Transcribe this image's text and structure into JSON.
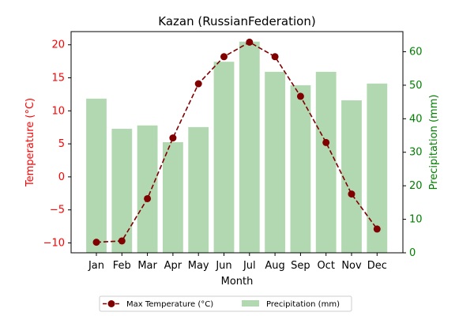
{
  "chart_data": {
    "type": "bar+line",
    "title": "Kazan (RussianFederation)",
    "xlabel": "Month",
    "categories": [
      "Jan",
      "Feb",
      "Mar",
      "Apr",
      "May",
      "Jun",
      "Jul",
      "Aug",
      "Sep",
      "Oct",
      "Nov",
      "Dec"
    ],
    "left_axis": {
      "label": "Temperature (°C)",
      "ylim": [
        -11.5,
        22
      ],
      "ticks": [
        -10,
        -5,
        0,
        5,
        10,
        15,
        20
      ],
      "tick_labels": [
        "−10",
        "−5",
        "0",
        "5",
        "10",
        "15",
        "20"
      ],
      "color": "#ff0000"
    },
    "right_axis": {
      "label": "Precipitation (mm)",
      "ylim": [
        0,
        66
      ],
      "ticks": [
        0,
        10,
        20,
        30,
        40,
        50,
        60
      ],
      "tick_labels": [
        "0",
        "10",
        "20",
        "30",
        "40",
        "50",
        "60"
      ],
      "color": "#008000"
    },
    "series": [
      {
        "name": "Max Temperature (°C)",
        "type": "line",
        "axis": "left",
        "values": [
          -9.9,
          -9.7,
          -3.3,
          5.9,
          14.1,
          18.2,
          20.4,
          18.2,
          12.2,
          5.2,
          -2.6,
          -7.9
        ],
        "color": "#800000"
      },
      {
        "name": "Precipitation (mm)",
        "type": "bar",
        "axis": "right",
        "values": [
          46,
          37,
          38,
          33,
          37.5,
          57,
          63,
          54,
          50,
          54,
          45.5,
          50.5
        ],
        "color": "#b2d8b2"
      }
    ],
    "legend": {
      "placement": "bottom-center",
      "entries": [
        "Max Temperature (°C)",
        "Precipitation (mm)"
      ]
    },
    "grid": false
  }
}
